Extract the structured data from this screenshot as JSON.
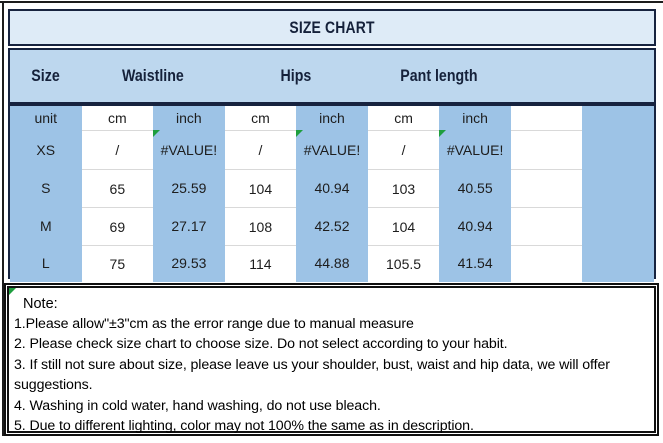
{
  "title": "SIZE CHART",
  "header": {
    "cells": [
      {
        "label": "Size"
      },
      {
        "label": "Waistline"
      },
      {
        "label": "Hips"
      },
      {
        "label": "Pant length"
      },
      {
        "label": ""
      }
    ]
  },
  "table": {
    "unit_row": [
      "unit",
      "cm",
      "inch",
      "cm",
      "inch",
      "cm",
      "inch",
      "",
      ""
    ],
    "rows": [
      {
        "label": "XS",
        "values": [
          "/",
          "#VALUE!",
          "/",
          "#VALUE!",
          "/",
          "#VALUE!"
        ],
        "has_errors": true
      },
      {
        "label": "S",
        "values": [
          "65",
          "25.59",
          "104",
          "40.94",
          "103",
          "40.55"
        ],
        "has_errors": false
      },
      {
        "label": "M",
        "values": [
          "69",
          "27.17",
          "108",
          "42.52",
          "104",
          "40.94"
        ],
        "has_errors": false
      },
      {
        "label": "L",
        "values": [
          "75",
          "29.53",
          "114",
          "44.88",
          "105.5",
          "41.54"
        ],
        "has_errors": false
      }
    ]
  },
  "note": {
    "heading": "Note:",
    "lines": [
      "1.Please allow\"±3\"cm as the error range due to manual measure",
      "2. Please check size chart to choose size. Do not select according to your habit.",
      "3. If still not sure about size, please leave us your shoulder, bust, waist and hip data, we will offer",
      "suggestions.",
      "4. Washing in cold water, hand washing, do not use bleach.",
      "5. Due to different lighting, color may not 100% the same as in description."
    ]
  },
  "colors": {
    "title_fill": "#DEEBF7",
    "header_fill": "#BDD7EE",
    "cell_blue": "#9DC3E6",
    "border_navy": "#17233F",
    "gridline_gray": "#D9D9D9",
    "error_triangle_green": "#1E9E3E",
    "note_border_black": "#101010"
  }
}
